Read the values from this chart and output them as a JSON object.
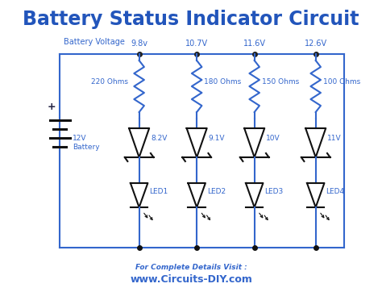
{
  "title": "Battery Status Indicator Circuit",
  "title_color": "#2255bb",
  "title_fontsize": 17,
  "bg_color": "#ffffff",
  "circuit_color": "#3366cc",
  "text_color": "#3366cc",
  "footer_text": "For Complete Details Visit :",
  "footer_url": "www.Circuits-DIY.com",
  "battery_label": "12V\nBattery",
  "battery_plus": "+",
  "voltage_labels": [
    "9.8v",
    "10.7V",
    "11.6V",
    "12.6V"
  ],
  "resistor_labels": [
    "220 Ohms",
    "180 Ohms",
    "150 Ohms",
    "100 Ohms"
  ],
  "zener_labels": [
    "8.2V",
    "9.1V",
    "10V",
    "11V"
  ],
  "led_labels": [
    "LED1",
    "LED2",
    "LED3",
    "LED4"
  ],
  "header_label": "Battery Voltage",
  "lw": 1.5
}
